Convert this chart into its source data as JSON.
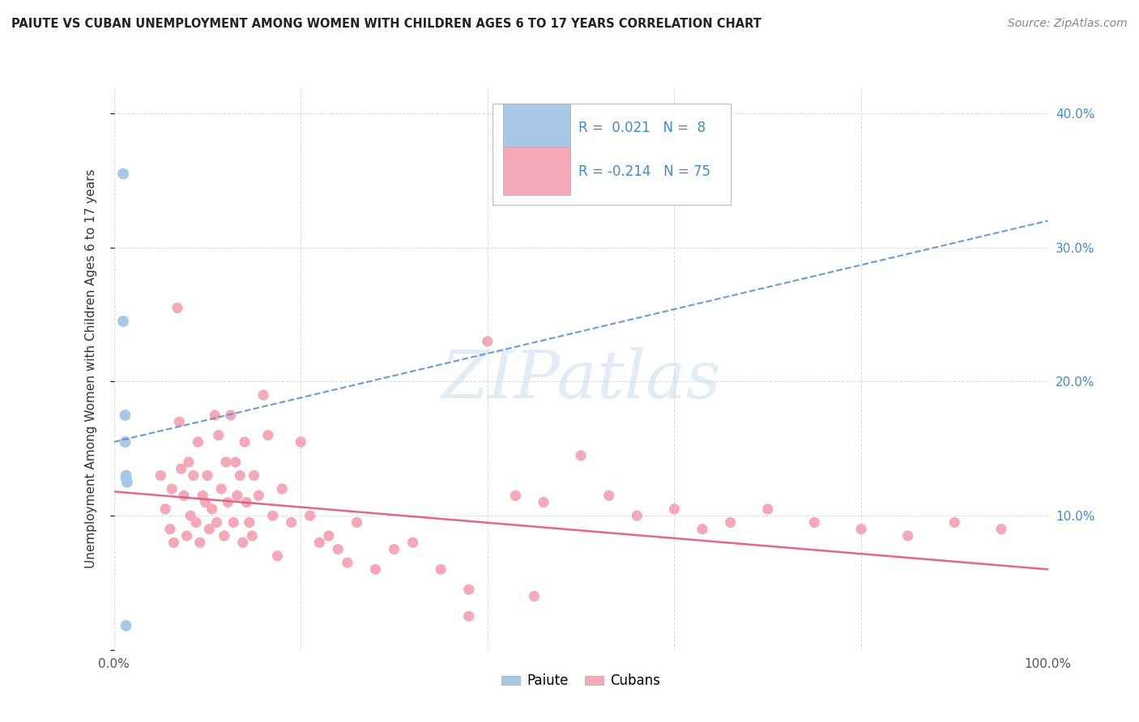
{
  "title": "PAIUTE VS CUBAN UNEMPLOYMENT AMONG WOMEN WITH CHILDREN AGES 6 TO 17 YEARS CORRELATION CHART",
  "source": "Source: ZipAtlas.com",
  "ylabel": "Unemployment Among Women with Children Ages 6 to 17 years",
  "xlim": [
    0,
    1.0
  ],
  "ylim": [
    0,
    0.42
  ],
  "xtick_positions": [
    0.0,
    0.2,
    0.4,
    0.6,
    0.8,
    1.0
  ],
  "xticklabels": [
    "0.0%",
    "",
    "",
    "",
    "",
    "100.0%"
  ],
  "ytick_positions": [
    0.0,
    0.1,
    0.2,
    0.3,
    0.4
  ],
  "yticklabels_right": [
    "",
    "10.0%",
    "20.0%",
    "30.0%",
    "40.0%"
  ],
  "legend_paiute_R": "0.021",
  "legend_paiute_N": "8",
  "legend_cuban_R": "-0.214",
  "legend_cuban_N": "75",
  "paiute_color": "#a8c8e8",
  "paiute_line_color": "#5588cc",
  "cuban_color": "#f4a8b8",
  "cuban_line_color": "#e05878",
  "legend_text_color": "#4488cc",
  "background_color": "#ffffff",
  "grid_color": "#cccccc",
  "watermark_color": "#c8d8ea",
  "paiute_points_x": [
    0.01,
    0.01,
    0.012,
    0.012,
    0.013,
    0.013,
    0.014,
    0.013
  ],
  "paiute_points_y": [
    0.355,
    0.245,
    0.175,
    0.155,
    0.13,
    0.128,
    0.125,
    0.018
  ],
  "paiute_trend_x0": 0.0,
  "paiute_trend_x1": 1.0,
  "paiute_trend_y0": 0.155,
  "paiute_trend_y1": 0.32,
  "cuban_trend_x0": 0.0,
  "cuban_trend_x1": 1.0,
  "cuban_trend_y0": 0.118,
  "cuban_trend_y1": 0.06,
  "cuban_points_x": [
    0.05,
    0.055,
    0.06,
    0.062,
    0.064,
    0.068,
    0.07,
    0.072,
    0.075,
    0.078,
    0.08,
    0.082,
    0.085,
    0.088,
    0.09,
    0.092,
    0.095,
    0.098,
    0.1,
    0.102,
    0.105,
    0.108,
    0.11,
    0.112,
    0.115,
    0.118,
    0.12,
    0.122,
    0.125,
    0.128,
    0.13,
    0.132,
    0.135,
    0.138,
    0.14,
    0.142,
    0.145,
    0.148,
    0.15,
    0.155,
    0.16,
    0.165,
    0.17,
    0.175,
    0.18,
    0.19,
    0.2,
    0.21,
    0.22,
    0.23,
    0.24,
    0.25,
    0.26,
    0.28,
    0.3,
    0.32,
    0.35,
    0.38,
    0.4,
    0.43,
    0.46,
    0.5,
    0.53,
    0.56,
    0.6,
    0.63,
    0.66,
    0.7,
    0.75,
    0.8,
    0.85,
    0.9,
    0.95,
    0.38,
    0.45
  ],
  "cuban_points_y": [
    0.13,
    0.105,
    0.09,
    0.12,
    0.08,
    0.255,
    0.17,
    0.135,
    0.115,
    0.085,
    0.14,
    0.1,
    0.13,
    0.095,
    0.155,
    0.08,
    0.115,
    0.11,
    0.13,
    0.09,
    0.105,
    0.175,
    0.095,
    0.16,
    0.12,
    0.085,
    0.14,
    0.11,
    0.175,
    0.095,
    0.14,
    0.115,
    0.13,
    0.08,
    0.155,
    0.11,
    0.095,
    0.085,
    0.13,
    0.115,
    0.19,
    0.16,
    0.1,
    0.07,
    0.12,
    0.095,
    0.155,
    0.1,
    0.08,
    0.085,
    0.075,
    0.065,
    0.095,
    0.06,
    0.075,
    0.08,
    0.06,
    0.045,
    0.23,
    0.115,
    0.11,
    0.145,
    0.115,
    0.1,
    0.105,
    0.09,
    0.095,
    0.105,
    0.095,
    0.09,
    0.085,
    0.095,
    0.09,
    0.025,
    0.04
  ]
}
